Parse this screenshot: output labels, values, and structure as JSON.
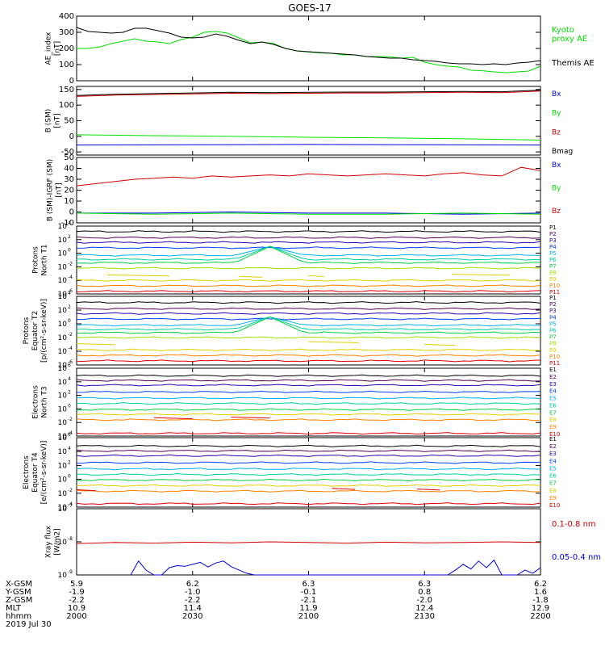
{
  "title": "GOES-17",
  "colors": {
    "black": "#000000",
    "green": "#00e000",
    "red": "#d00000",
    "blue": "#0000e0",
    "p_channels": [
      "#000000",
      "#550055",
      "#2a00b0",
      "#0040ff",
      "#00b0ff",
      "#00d0a0",
      "#00d040",
      "#a0e000",
      "#e0d000",
      "#ff8000",
      "#e00000"
    ],
    "e_channels": [
      "#000000",
      "#550055",
      "#2a00b0",
      "#0040ff",
      "#00b0ff",
      "#00d0a0",
      "#00d040",
      "#e0d000",
      "#ff8000",
      "#e00000"
    ]
  },
  "chart_data": [
    {
      "type": "line",
      "ylabel": "AE_index [nT]",
      "ylim": [
        0,
        400
      ],
      "yticks": [
        "0",
        "100",
        "200",
        "300",
        "400"
      ],
      "series": [
        {
          "name": "Kyoto proxy AE",
          "legend_lines": [
            "Kyoto",
            "proxy AE"
          ],
          "color": "#00e000",
          "x": [
            0,
            3,
            6,
            9,
            12,
            15,
            18,
            21,
            24,
            27,
            30,
            33,
            36,
            39,
            42,
            45,
            48,
            51,
            54,
            57,
            60,
            63,
            66,
            69,
            72,
            75,
            78,
            81,
            84,
            87,
            90,
            93,
            96,
            99,
            102,
            105,
            108,
            111,
            114,
            117,
            120
          ],
          "y": [
            200,
            200,
            210,
            230,
            245,
            260,
            245,
            240,
            230,
            255,
            270,
            300,
            305,
            295,
            265,
            235,
            240,
            230,
            200,
            185,
            178,
            172,
            170,
            160,
            160,
            150,
            150,
            148,
            140,
            145,
            115,
            100,
            90,
            85,
            65,
            62,
            55,
            50,
            55,
            60,
            90
          ]
        },
        {
          "name": "Themis AE",
          "legend_lines": [
            "Themis AE"
          ],
          "color": "#000000",
          "x": [
            0,
            3,
            6,
            9,
            12,
            15,
            18,
            21,
            24,
            27,
            30,
            33,
            36,
            39,
            42,
            45,
            48,
            51,
            54,
            57,
            60,
            63,
            66,
            69,
            72,
            75,
            78,
            81,
            84,
            87,
            90,
            93,
            96,
            99,
            102,
            105,
            108,
            111,
            114,
            117,
            120
          ],
          "y": [
            330,
            305,
            300,
            295,
            300,
            325,
            325,
            310,
            295,
            270,
            265,
            270,
            290,
            275,
            250,
            230,
            240,
            225,
            200,
            185,
            180,
            175,
            170,
            165,
            160,
            150,
            145,
            140,
            140,
            130,
            125,
            120,
            110,
            105,
            105,
            100,
            105,
            100,
            110,
            115,
            125
          ]
        }
      ]
    },
    {
      "type": "line",
      "ylabel": "B (SM) [nT]",
      "ylim": [
        -60,
        160
      ],
      "yticks": [
        "-50",
        "0",
        "50",
        "100",
        "150"
      ],
      "series": [
        {
          "name": "Bx",
          "color": "#0000e0",
          "x": [
            0,
            30,
            60,
            90,
            120
          ],
          "y": [
            -28,
            -27,
            -26,
            -27,
            -28
          ]
        },
        {
          "name": "By",
          "color": "#00e000",
          "x": [
            0,
            20,
            40,
            60,
            80,
            100,
            120
          ],
          "y": [
            5,
            2,
            0,
            -3,
            -5,
            -8,
            -12
          ]
        },
        {
          "name": "Bz",
          "color": "#d00000",
          "x": [
            0,
            10,
            20,
            30,
            40,
            50,
            60,
            70,
            80,
            90,
            100,
            110,
            120
          ],
          "y": [
            128,
            132,
            134,
            136,
            138,
            137,
            138,
            139,
            139,
            140,
            141,
            140,
            145
          ]
        },
        {
          "name": "Bmag",
          "color": "#000000",
          "x": [
            0,
            10,
            20,
            30,
            40,
            50,
            60,
            70,
            80,
            90,
            100,
            110,
            120
          ],
          "y": [
            131,
            135,
            137,
            139,
            141,
            140,
            141,
            142,
            142,
            143,
            144,
            143,
            148
          ]
        }
      ]
    },
    {
      "type": "line",
      "ylabel": "B (SM)-IGRF (SM) [nT]",
      "ylim": [
        -10,
        50
      ],
      "yticks": [
        "-10",
        "0",
        "10",
        "20",
        "30",
        "40",
        "50"
      ],
      "series": [
        {
          "name": "Bx",
          "color": "#0000e0",
          "x": [
            0,
            20,
            40,
            60,
            80,
            100,
            120
          ],
          "y": [
            -1,
            -1,
            0,
            -1,
            -1,
            -2,
            -1
          ]
        },
        {
          "name": "By",
          "color": "#00e000",
          "x": [
            0,
            20,
            40,
            60,
            80,
            100,
            120
          ],
          "y": [
            -1,
            -2,
            -1,
            -2,
            -2,
            -1,
            -2
          ]
        },
        {
          "name": "Bz",
          "color": "#d00000",
          "x": [
            0,
            5,
            10,
            15,
            20,
            25,
            30,
            35,
            40,
            45,
            50,
            55,
            60,
            65,
            70,
            75,
            80,
            85,
            90,
            95,
            100,
            105,
            110,
            115,
            120
          ],
          "y": [
            24,
            26,
            28,
            30,
            31,
            32,
            31,
            33,
            32,
            33,
            34,
            33,
            35,
            34,
            33,
            34,
            35,
            34,
            33,
            35,
            36,
            34,
            33,
            41,
            38
          ]
        }
      ]
    },
    {
      "type": "line",
      "ylabel_lines": [
        "Protons",
        "North T1"
      ],
      "ylim_log10": [
        -6,
        4
      ],
      "ytick_exps": [
        -6,
        -4,
        -2,
        0,
        2,
        4
      ],
      "channels": [
        "P1",
        "P2",
        "P3",
        "P4",
        "P5",
        "P6",
        "P7",
        "P8",
        "P9",
        "P10",
        "P11"
      ],
      "levels_log10": [
        3.2,
        2.3,
        1.6,
        0.8,
        -0.3,
        -0.9,
        -1.4,
        -2.2,
        -4.0,
        -4.8,
        -5.6
      ],
      "spike": {
        "x": 50,
        "peak_log10": 1.0,
        "halfwidth": 9,
        "channels": [
          4,
          5,
          6
        ]
      },
      "segments_log10": [
        [
          8,
          24,
          -3.2
        ],
        [
          42,
          48,
          -3.4
        ],
        [
          60,
          64,
          -3.3
        ],
        [
          97,
          112,
          -3.1
        ]
      ]
    },
    {
      "type": "line",
      "ylabel_lines": [
        "Protons",
        "Equator T2",
        "[p/(cm²-s-sr-keV)]"
      ],
      "ylim_log10": [
        -6,
        4
      ],
      "ytick_exps": [
        -6,
        -4,
        -2,
        0,
        2,
        4
      ],
      "channels": [
        "P1",
        "P2",
        "P3",
        "P4",
        "P5",
        "P6",
        "P7",
        "P8",
        "P9",
        "P10",
        "P11"
      ],
      "levels_log10": [
        3.1,
        2.2,
        1.5,
        0.7,
        -0.2,
        -0.8,
        -1.3,
        -2.0,
        -3.8,
        -4.6,
        -5.4
      ],
      "spike": {
        "x": 50,
        "peak_log10": 1.0,
        "halfwidth": 9,
        "channels": [
          4,
          5,
          6
        ]
      },
      "segments_log10": [
        [
          0,
          10,
          -2.9
        ],
        [
          60,
          73,
          -2.6
        ],
        [
          90,
          98,
          -3.0
        ]
      ]
    },
    {
      "type": "line",
      "ylabel_lines": [
        "Electrons",
        "North T3"
      ],
      "ylim_log10": [
        -4,
        6
      ],
      "ytick_exps": [
        -4,
        -2,
        0,
        2,
        4,
        6
      ],
      "channels": [
        "E1",
        "E2",
        "E3",
        "E4",
        "E5",
        "E6",
        "E7",
        "E8",
        "E9",
        "E10"
      ],
      "levels_log10": [
        4.9,
        4.2,
        3.5,
        2.5,
        1.6,
        0.8,
        -0.1,
        -0.8,
        -1.6,
        -3.6
      ],
      "segments_log10": [
        [
          20,
          30,
          -1.3
        ],
        [
          40,
          50,
          -1.2
        ]
      ]
    },
    {
      "type": "line",
      "ylabel_lines": [
        "Electrons",
        "Equator T4",
        "[e/(cm²-s-sr-keV)]"
      ],
      "ylim_log10": [
        -4,
        6
      ],
      "ytick_exps": [
        -4,
        -2,
        0,
        2,
        4,
        6
      ],
      "channels": [
        "E1",
        "E2",
        "E3",
        "E4",
        "E5",
        "E6",
        "E7",
        "E8",
        "E9",
        "E10"
      ],
      "levels_log10": [
        4.8,
        4.1,
        3.4,
        2.4,
        1.5,
        0.7,
        -0.1,
        -0.9,
        -1.7,
        -3.5
      ],
      "segments_log10": [
        [
          0,
          5,
          -1.5
        ],
        [
          66,
          72,
          -1.3
        ],
        [
          88,
          94,
          -1.4
        ]
      ]
    },
    {
      "type": "line",
      "ylabel_lines": [
        "Xray flux",
        "[W/m2]"
      ],
      "ylim_log10": [
        -9,
        -7
      ],
      "ytick_exps": [
        -9,
        -8,
        -7
      ],
      "series": [
        {
          "name": "0.1-0.8 nm",
          "color": "#d00000",
          "x": [
            0,
            10,
            20,
            30,
            40,
            50,
            60,
            70,
            80,
            90,
            100,
            110,
            120
          ],
          "y_log10": [
            -8.05,
            -8.02,
            -8.04,
            -8.01,
            -8.03,
            -8.0,
            -8.02,
            -8.04,
            -8.01,
            -8.03,
            -8.02,
            -8.0,
            -8.02
          ]
        },
        {
          "name": "0.05-0.4 nm",
          "color": "#0000e0",
          "x": [
            14,
            16,
            18,
            20,
            22,
            24,
            26,
            28,
            30,
            32,
            34,
            36,
            38,
            40,
            42,
            44,
            46,
            48,
            50,
            52,
            54,
            56,
            58,
            60,
            96,
            98,
            100,
            102,
            104,
            106,
            108,
            110,
            112,
            114,
            116,
            118,
            120
          ],
          "y_log10": [
            -9.0,
            -8.58,
            -8.86,
            -9.0,
            -9.0,
            -8.78,
            -8.72,
            -8.74,
            -8.68,
            -8.62,
            -8.76,
            -8.64,
            -8.58,
            -8.75,
            -8.85,
            -8.95,
            -9.0,
            -9.0,
            -9.0,
            -9.0,
            -9.0,
            -9.0,
            -9.0,
            -9.0,
            -9.0,
            -8.85,
            -8.68,
            -8.82,
            -8.58,
            -8.78,
            -8.55,
            -9.0,
            -9.0,
            -9.0,
            -8.85,
            -8.95,
            -8.78
          ]
        }
      ]
    }
  ],
  "xaxis": {
    "row_labels": [
      "X-GSM",
      "Y-GSM",
      "Z-GSM",
      "MLT",
      "hhmm",
      "2019 Jul 30"
    ],
    "columns": [
      {
        "x": 0,
        "values": [
          "5.9",
          "-1.9",
          "-2.2",
          "10.9",
          "2000"
        ]
      },
      {
        "x": 30,
        "values": [
          "6.2",
          "-1.0",
          "-2.2",
          "11.4",
          "2030"
        ]
      },
      {
        "x": 60,
        "values": [
          "6.3",
          "-0.1",
          "-2.1",
          "11.9",
          "2100"
        ]
      },
      {
        "x": 90,
        "values": [
          "6.3",
          "0.8",
          "-2.0",
          "12.4",
          "2130"
        ]
      },
      {
        "x": 120,
        "values": [
          "6.2",
          "1.6",
          "-1.8",
          "12.9",
          "2200"
        ]
      }
    ]
  },
  "legend_labels": {
    "b_sm": [
      "Bx",
      "By",
      "Bz",
      "Bmag"
    ],
    "b_igrf": [
      "Bx",
      "By",
      "Bz"
    ],
    "xray": [
      "0.1-0.8 nm",
      "0.05-0.4 nm"
    ]
  }
}
